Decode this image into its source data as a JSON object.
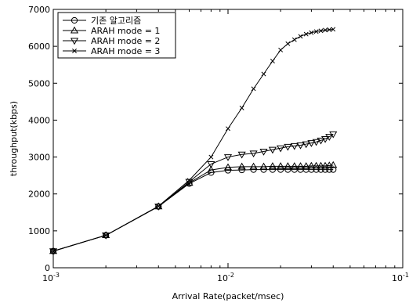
{
  "chart_data": {
    "type": "line",
    "xlabel": "Arrival Rate(packet/msec)",
    "ylabel": "throughput(kbps)",
    "x_scale": "log",
    "xlim": [
      0.001,
      0.1
    ],
    "ylim": [
      0,
      7000
    ],
    "x_ticks": [
      {
        "value": 0.001,
        "base": "10",
        "exp": "-3"
      },
      {
        "value": 0.01,
        "base": "10",
        "exp": "-2"
      },
      {
        "value": 0.1,
        "base": "10",
        "exp": "-1"
      }
    ],
    "y_ticks": [
      0,
      1000,
      2000,
      3000,
      4000,
      5000,
      6000,
      7000
    ],
    "grid": false,
    "legend_position": "top-left",
    "series": [
      {
        "name": "기존 알고리즘",
        "marker": "circle",
        "x": [
          0.001,
          0.002,
          0.004,
          0.006,
          0.008,
          0.01,
          0.012,
          0.014,
          0.016,
          0.018,
          0.02,
          0.022,
          0.024,
          0.026,
          0.028,
          0.03,
          0.032,
          0.034,
          0.036,
          0.038,
          0.04
        ],
        "y": [
          450,
          880,
          1660,
          2280,
          2580,
          2640,
          2650,
          2660,
          2660,
          2660,
          2660,
          2660,
          2660,
          2660,
          2660,
          2660,
          2660,
          2660,
          2660,
          2660,
          2660
        ]
      },
      {
        "name": "ARAH mode = 1",
        "marker": "triangle-up",
        "x": [
          0.001,
          0.002,
          0.004,
          0.006,
          0.008,
          0.01,
          0.012,
          0.014,
          0.016,
          0.018,
          0.02,
          0.022,
          0.024,
          0.026,
          0.028,
          0.03,
          0.032,
          0.034,
          0.036,
          0.038,
          0.04
        ],
        "y": [
          450,
          880,
          1660,
          2300,
          2650,
          2720,
          2740,
          2740,
          2740,
          2750,
          2750,
          2750,
          2750,
          2750,
          2750,
          2760,
          2760,
          2760,
          2760,
          2770,
          2780
        ]
      },
      {
        "name": "ARAH mode = 2",
        "marker": "triangle-down",
        "x": [
          0.001,
          0.002,
          0.004,
          0.006,
          0.008,
          0.01,
          0.012,
          0.014,
          0.016,
          0.018,
          0.02,
          0.022,
          0.024,
          0.026,
          0.028,
          0.03,
          0.032,
          0.034,
          0.036,
          0.038,
          0.04
        ],
        "y": [
          450,
          880,
          1660,
          2330,
          2810,
          3000,
          3070,
          3100,
          3150,
          3200,
          3240,
          3280,
          3300,
          3320,
          3350,
          3380,
          3410,
          3450,
          3490,
          3550,
          3620
        ]
      },
      {
        "name": "ARAH mode = 3",
        "marker": "x",
        "x": [
          0.001,
          0.002,
          0.004,
          0.006,
          0.008,
          0.01,
          0.012,
          0.014,
          0.016,
          0.018,
          0.02,
          0.022,
          0.024,
          0.026,
          0.028,
          0.03,
          0.032,
          0.034,
          0.036,
          0.038,
          0.04
        ],
        "y": [
          450,
          880,
          1670,
          2370,
          3000,
          3770,
          4330,
          4850,
          5250,
          5600,
          5900,
          6070,
          6180,
          6270,
          6330,
          6370,
          6400,
          6420,
          6440,
          6450,
          6460
        ]
      }
    ]
  }
}
